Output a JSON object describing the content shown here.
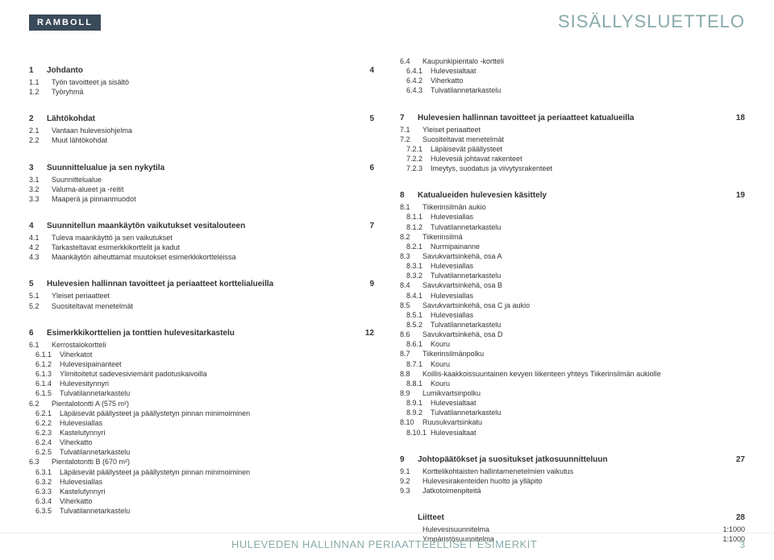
{
  "logo": "RAMBOLL",
  "pageTitle": "SISÄLLYSLUETTELO",
  "footer": {
    "title": "HULEVEDEN HALLINNAN PERIAATTEELLISET ESIMERKIT",
    "page": "3"
  },
  "left": [
    {
      "type": "sec",
      "num": "1",
      "title": "Johdanto",
      "page": "4"
    },
    {
      "type": "row",
      "lvl": 1,
      "n": "1.1",
      "t": "Työn tavoitteet ja sisältö"
    },
    {
      "type": "row",
      "lvl": 1,
      "n": "1.2",
      "t": "Työryhmä"
    },
    {
      "type": "spacer"
    },
    {
      "type": "sec",
      "num": "2",
      "title": "Lähtökohdat",
      "page": "5"
    },
    {
      "type": "row",
      "lvl": 1,
      "n": "2.1",
      "t": "Vantaan hulevesiohjelma"
    },
    {
      "type": "row",
      "lvl": 1,
      "n": "2.2",
      "t": "Muut lähtökohdat"
    },
    {
      "type": "spacer"
    },
    {
      "type": "sec",
      "num": "3",
      "title": "Suunnittelualue ja sen nykytila",
      "page": "6"
    },
    {
      "type": "row",
      "lvl": 1,
      "n": "3.1",
      "t": "Suunnittelualue"
    },
    {
      "type": "row",
      "lvl": 1,
      "n": "3.2",
      "t": "Valuma-alueet ja -reitit"
    },
    {
      "type": "row",
      "lvl": 1,
      "n": "3.3",
      "t": "Maaperä ja pinnanmuodot"
    },
    {
      "type": "spacer"
    },
    {
      "type": "sec",
      "num": "4",
      "title": "Suunnitellun maankäytön vaikutukset vesitalouteen",
      "page": "7"
    },
    {
      "type": "row",
      "lvl": 1,
      "n": "4.1",
      "t": "Tuleva maankäyttö ja sen vaikutukset"
    },
    {
      "type": "row",
      "lvl": 1,
      "n": "4.2",
      "t": "Tarkasteltavat esimerkkikorttelit ja kadut"
    },
    {
      "type": "row",
      "lvl": 1,
      "n": "4.3",
      "t": "Maankäytön aiheuttamat muutokset esimerkkikortteleissa"
    },
    {
      "type": "spacer"
    },
    {
      "type": "sec",
      "num": "5",
      "title": "Hulevesien hallinnan tavoitteet ja periaatteet korttelialueilla",
      "page": "9"
    },
    {
      "type": "row",
      "lvl": 1,
      "n": "5.1",
      "t": "Yleiset periaatteet"
    },
    {
      "type": "row",
      "lvl": 1,
      "n": "5.2",
      "t": "Suositeltavat menetelmät"
    },
    {
      "type": "spacer"
    },
    {
      "type": "sec",
      "num": "6",
      "title": "Esimerkkikorttelien ja tonttien hulevesitarkastelu",
      "page": "12"
    },
    {
      "type": "row",
      "lvl": 1,
      "n": "6.1",
      "t": "Kerrostalokortteli"
    },
    {
      "type": "row",
      "lvl": 2,
      "n": "6.1.1",
      "t": "Viherkatot"
    },
    {
      "type": "row",
      "lvl": 2,
      "n": "6.1.2",
      "t": "Hulevesipainanteet"
    },
    {
      "type": "row",
      "lvl": 2,
      "n": "6.1.3",
      "t": "Ylimitoitetut sadevesiviemärit padotuskaivoilla"
    },
    {
      "type": "row",
      "lvl": 2,
      "n": "6.1.4",
      "t": "Hulevesitynnyri"
    },
    {
      "type": "row",
      "lvl": 2,
      "n": "6.1.5",
      "t": "Tulvatilannetarkastelu"
    },
    {
      "type": "row",
      "lvl": 1,
      "n": "6.2",
      "t": "Pientalotontti A (575 m²)"
    },
    {
      "type": "row",
      "lvl": 2,
      "n": "6.2.1",
      "t": "Läpäisevät päällysteet ja päällystetyn pinnan minimoiminen"
    },
    {
      "type": "row",
      "lvl": 2,
      "n": "6.2.2",
      "t": "Hulevesiallas"
    },
    {
      "type": "row",
      "lvl": 2,
      "n": "6.2.3",
      "t": "Kastelutynnyri"
    },
    {
      "type": "row",
      "lvl": 2,
      "n": "6.2.4",
      "t": "Viherkatto"
    },
    {
      "type": "row",
      "lvl": 2,
      "n": "6.2.5",
      "t": "Tulvatilannetarkastelu"
    },
    {
      "type": "row",
      "lvl": 1,
      "n": "6.3",
      "t": "Pientalotontti B (670 m²)"
    },
    {
      "type": "row",
      "lvl": 2,
      "n": "6.3.1",
      "t": "Läpäisevät päällysteet ja päällystetyn pinnan minimoiminen"
    },
    {
      "type": "row",
      "lvl": 2,
      "n": "6.3.2",
      "t": "Hulevesiallas"
    },
    {
      "type": "row",
      "lvl": 2,
      "n": "6.3.3",
      "t": "Kastelutynnyri"
    },
    {
      "type": "row",
      "lvl": 2,
      "n": "6.3.4",
      "t": "Viherkatto"
    },
    {
      "type": "row",
      "lvl": 2,
      "n": "6.3.5",
      "t": "Tulvatilannetarkastelu"
    }
  ],
  "right": [
    {
      "type": "row",
      "lvl": 1,
      "n": "6.4",
      "t": "Kaupunkipientalo -kortteli"
    },
    {
      "type": "row",
      "lvl": 2,
      "n": "6.4.1",
      "t": "Hulevesialtaat"
    },
    {
      "type": "row",
      "lvl": 2,
      "n": "6.4.2",
      "t": "Viherkatto"
    },
    {
      "type": "row",
      "lvl": 2,
      "n": "6.4.3",
      "t": "Tulvatilannetarkastelu"
    },
    {
      "type": "spacer"
    },
    {
      "type": "sec",
      "num": "7",
      "title": "Hulevesien hallinnan tavoitteet ja periaatteet katualueilla",
      "page": "18"
    },
    {
      "type": "row",
      "lvl": 1,
      "n": "7.1",
      "t": "Yleiset periaatteet"
    },
    {
      "type": "row",
      "lvl": 1,
      "n": "7.2",
      "t": "Suositeltavat menetelmät"
    },
    {
      "type": "row",
      "lvl": 2,
      "n": "7.2.1",
      "t": "Läpäisevät päällysteet"
    },
    {
      "type": "row",
      "lvl": 2,
      "n": "7.2.2",
      "t": "Hulevesiä johtavat rakenteet"
    },
    {
      "type": "row",
      "lvl": 2,
      "n": "7.2.3",
      "t": "Imeytys, suodatus ja viivytysrakenteet"
    },
    {
      "type": "spacer"
    },
    {
      "type": "sec",
      "num": "8",
      "title": "Katualueiden hulevesien käsittely",
      "page": "19"
    },
    {
      "type": "row",
      "lvl": 1,
      "n": "8.1",
      "t": "Tiikerinsilmän aukio"
    },
    {
      "type": "row",
      "lvl": 2,
      "n": "8.1.1",
      "t": "Hulevesiallas"
    },
    {
      "type": "row",
      "lvl": 2,
      "n": "8.1.2",
      "t": "Tulvatilannetarkastelu"
    },
    {
      "type": "row",
      "lvl": 1,
      "n": "8.2",
      "t": "Tiikerinsilmä"
    },
    {
      "type": "row",
      "lvl": 2,
      "n": "8.2.1",
      "t": "Nurmipainanne"
    },
    {
      "type": "row",
      "lvl": 1,
      "n": "8.3",
      "t": "Savukvartsinkehä, osa A"
    },
    {
      "type": "row",
      "lvl": 2,
      "n": "8.3.1",
      "t": "Hulevesiallas"
    },
    {
      "type": "row",
      "lvl": 2,
      "n": "8.3.2",
      "t": "Tulvatilannetarkastelu"
    },
    {
      "type": "row",
      "lvl": 1,
      "n": "8.4",
      "t": "Savukvartsinkehä, osa B"
    },
    {
      "type": "row",
      "lvl": 2,
      "n": "8.4.1",
      "t": "Hulevesiallas"
    },
    {
      "type": "row",
      "lvl": 1,
      "n": "8.5",
      "t": "Savukvartsinkehä, osa C ja aukio"
    },
    {
      "type": "row",
      "lvl": 2,
      "n": "8.5.1",
      "t": "Hulevesiallas"
    },
    {
      "type": "row",
      "lvl": 2,
      "n": "8.5.2",
      "t": "Tulvatilannetarkastelu"
    },
    {
      "type": "row",
      "lvl": 1,
      "n": "8.6",
      "t": "Savukvartsinkehä, osa D"
    },
    {
      "type": "row",
      "lvl": 2,
      "n": "8.6.1",
      "t": "Kouru"
    },
    {
      "type": "row",
      "lvl": 1,
      "n": "8.7",
      "t": "Tiikerinsilmänpolku"
    },
    {
      "type": "row",
      "lvl": 2,
      "n": "8.7.1",
      "t": "Kouru"
    },
    {
      "type": "row",
      "lvl": 1,
      "n": "8.8",
      "t": "Koillis-kaakkoissuuntainen kevyen liikenteen yhteys Tiikerinsilmän aukiolle"
    },
    {
      "type": "row",
      "lvl": 2,
      "n": "8.8.1",
      "t": "Kouru"
    },
    {
      "type": "row",
      "lvl": 1,
      "n": "8.9",
      "t": "Lumikvartsinpolku"
    },
    {
      "type": "row",
      "lvl": 2,
      "n": "8.9.1",
      "t": "Hulevesialtaat"
    },
    {
      "type": "row",
      "lvl": 2,
      "n": "8.9.2",
      "t": "Tulvatilannetarkastelu"
    },
    {
      "type": "row",
      "lvl": 1,
      "n": "8.10",
      "t": "Ruusukvartsinkatu"
    },
    {
      "type": "row",
      "lvl": 2,
      "n": "8.10.1",
      "t": "Hulevesialtaat"
    },
    {
      "type": "spacer"
    },
    {
      "type": "sec",
      "num": "9",
      "title": "Johtopäätökset ja suositukset jatkosuunnitteluun",
      "page": "27"
    },
    {
      "type": "row",
      "lvl": 1,
      "n": "9.1",
      "t": "Korttelikohtaisten hallintamenetelmien vaikutus"
    },
    {
      "type": "row",
      "lvl": 1,
      "n": "9.2",
      "t": "Hulevesirakenteiden huolto ja ylläpito"
    },
    {
      "type": "row",
      "lvl": 1,
      "n": "9.3",
      "t": "Jatkotoimenpiteitä"
    },
    {
      "type": "spacer"
    },
    {
      "type": "sec",
      "num": "",
      "title": "Liitteet",
      "page": "28"
    },
    {
      "type": "row",
      "lvl": 1,
      "n": "",
      "t": "Hulevesisuunnitelma",
      "p": "1:1000"
    },
    {
      "type": "row",
      "lvl": 1,
      "n": "",
      "t": "Ympäristösuunnitelma",
      "p": "1:1000"
    }
  ]
}
